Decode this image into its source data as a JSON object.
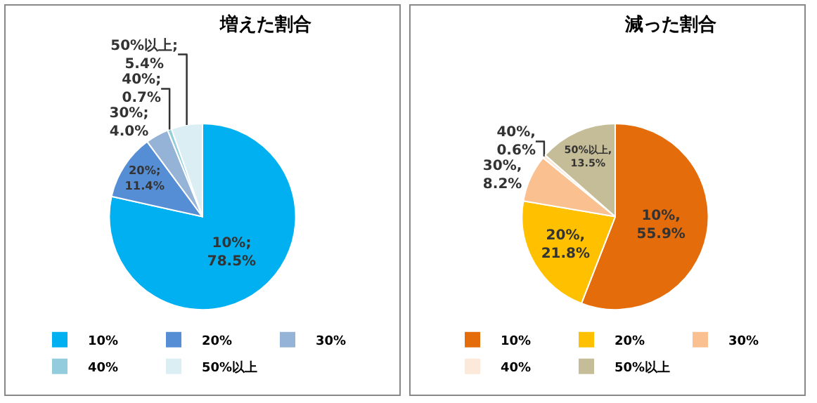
{
  "chart_data": [
    {
      "type": "pie",
      "title": "増えた割合",
      "categories": [
        "10%",
        "20%",
        "30%",
        "40%",
        "50%以上"
      ],
      "values": [
        78.5,
        11.4,
        4.0,
        0.7,
        5.4
      ],
      "colors": [
        "#00b0f0",
        "#558ed5",
        "#95b3d7",
        "#93cddd",
        "#dbeef4"
      ],
      "value_labels": [
        "10%; 78.5%",
        "20%; 11.4%",
        "30%; 4.0%",
        "40%; 0.7%",
        "50%以上; 5.4%"
      ],
      "legend": "bottom"
    },
    {
      "type": "pie",
      "title": "減った割合",
      "categories": [
        "10%",
        "20%",
        "30%",
        "40%",
        "50%以上"
      ],
      "values": [
        55.9,
        21.8,
        8.2,
        0.6,
        13.5
      ],
      "colors": [
        "#e46c0a",
        "#ffc000",
        "#fac090",
        "#fde9d9",
        "#c4bd97"
      ],
      "value_labels": [
        "10%, 55.9%",
        "20%, 21.8%",
        "30%, 8.2%",
        "40%, 0.6%",
        "50%以上, 13.5%"
      ],
      "legend": "bottom"
    }
  ]
}
